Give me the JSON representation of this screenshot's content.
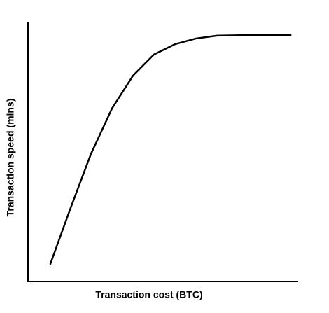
{
  "chart_data": {
    "type": "line",
    "x_label": "Transaction cost (BTC)",
    "y_label": "Transaction speed (mins)",
    "xlim": [
      0,
      100
    ],
    "ylim": [
      0,
      100
    ],
    "x": [
      8.3,
      15.5,
      23.3,
      31.1,
      38.9,
      46.6,
      54.4,
      62.2,
      69.9,
      80.3,
      97.2
    ],
    "series": [
      {
        "color": "#000000",
        "values": [
          6.8,
          27.6,
          49.2,
          66.8,
          79.5,
          87.6,
          91.6,
          93.8,
          94.9,
          95.1,
          95.1
        ]
      }
    ]
  }
}
